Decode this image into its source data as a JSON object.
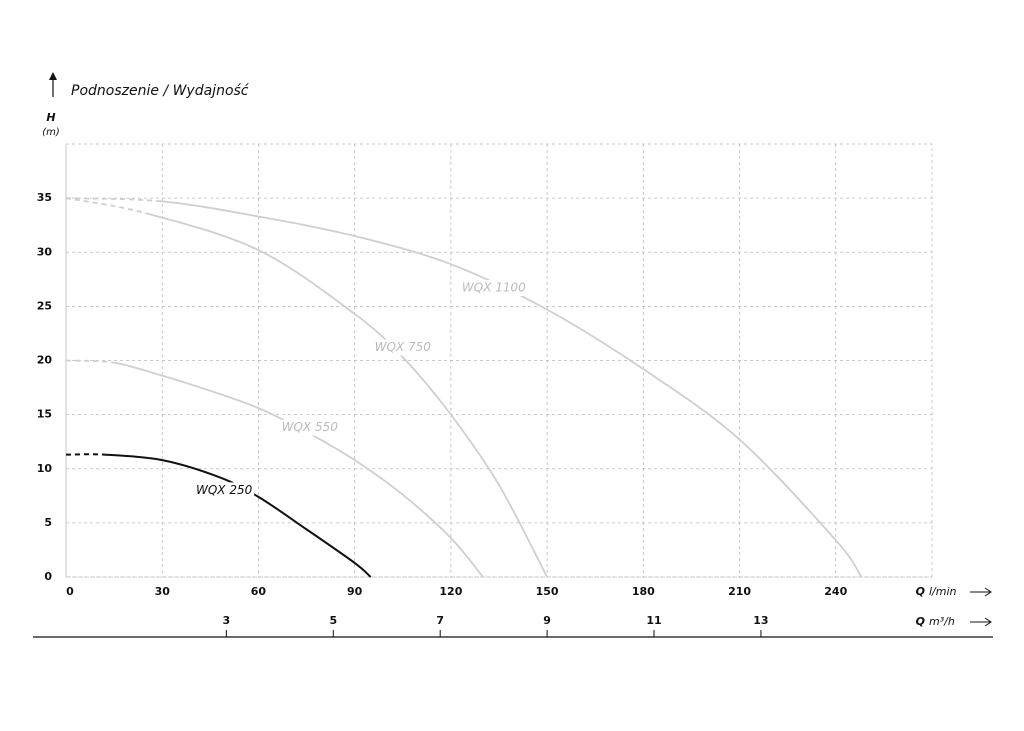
{
  "chart_data": {
    "type": "line",
    "title": "Podnoszenie / Wydajność",
    "y_label": {
      "symbol": "H",
      "unit": "(m)"
    },
    "x_label": {
      "symbol": "Q",
      "unit": "l/min"
    },
    "x2_label": {
      "symbol": "Q",
      "unit": "m³/h"
    },
    "xlim": [
      0,
      270
    ],
    "xticks": [
      0,
      30,
      60,
      90,
      120,
      150,
      180,
      210,
      240
    ],
    "x2lim": [
      0,
      16.2
    ],
    "x2ticks": [
      3,
      5,
      7,
      9,
      11,
      13
    ],
    "ylim": [
      0,
      40
    ],
    "yticks": [
      0,
      5,
      10,
      15,
      20,
      25,
      30,
      35
    ],
    "grid": true,
    "series": [
      {
        "name": "WQX 1100",
        "color": "#cfcfcf",
        "x": [
          0,
          30,
          60,
          90,
          120,
          150,
          180,
          210,
          240,
          248
        ],
        "values": [
          35,
          34.7,
          33.3,
          31.5,
          28.9,
          24.7,
          19.2,
          12.7,
          3.4,
          0
        ]
      },
      {
        "name": "WQX 750",
        "color": "#cfcfcf",
        "x": [
          0,
          25,
          60,
          90,
          105,
          120,
          135,
          150
        ],
        "values": [
          35,
          33.6,
          30.2,
          24.3,
          20.3,
          15,
          8.5,
          0
        ]
      },
      {
        "name": "WQX 550",
        "color": "#cfcfcf",
        "x": [
          0,
          15,
          30,
          45,
          60,
          75,
          90,
          105,
          120,
          130
        ],
        "values": [
          20,
          19.8,
          18.6,
          17.2,
          15.6,
          13.4,
          10.8,
          7.6,
          3.6,
          0
        ]
      },
      {
        "name": "WQX 250",
        "color": "#111111",
        "x": [
          0,
          12,
          30,
          48,
          60,
          75,
          90,
          95
        ],
        "values": [
          11.3,
          11.3,
          10.8,
          9.2,
          7.4,
          4.4,
          1.3,
          0
        ]
      }
    ]
  }
}
